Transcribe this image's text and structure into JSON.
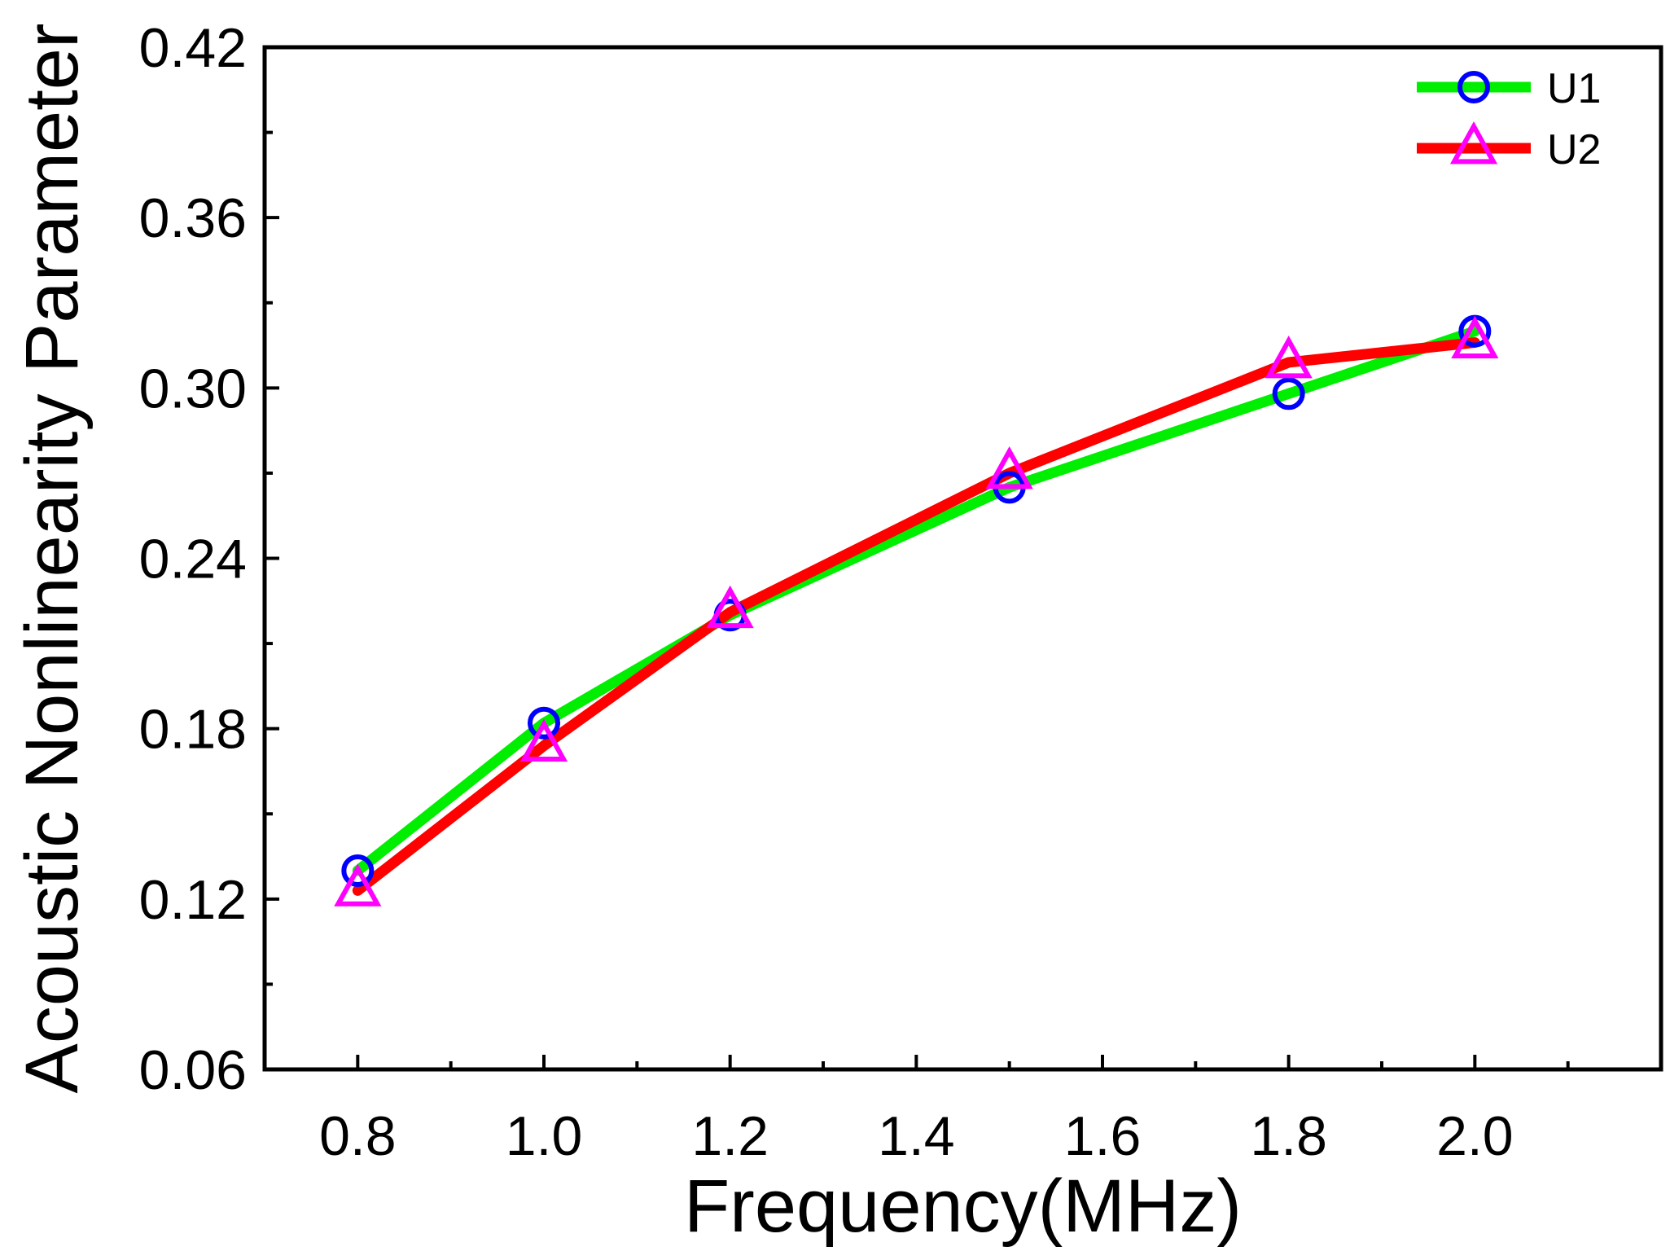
{
  "chart_data": {
    "type": "line",
    "xlabel": "Frequency(MHz)",
    "ylabel": "Acoustic Nonlinearity Parameter",
    "xlim": [
      0.7,
      2.2
    ],
    "ylim": [
      0.06,
      0.42
    ],
    "x_ticks": [
      0.8,
      1.0,
      1.2,
      1.4,
      1.6,
      1.8,
      2.0
    ],
    "x_tick_labels": [
      "0.8",
      "1.0",
      "1.2",
      "1.4",
      "1.6",
      "1.8",
      "2.0"
    ],
    "y_ticks": [
      0.06,
      0.12,
      0.18,
      0.24,
      0.3,
      0.36,
      0.42
    ],
    "y_tick_labels": [
      "0.06",
      "0.12",
      "0.18",
      "0.24",
      "0.30",
      "0.36",
      "0.42"
    ],
    "grid": false,
    "legend_position": "top-right",
    "series": [
      {
        "name": "U1",
        "x": [
          0.8,
          1.0,
          1.2,
          1.5,
          1.8,
          2.0
        ],
        "y": [
          0.13,
          0.182,
          0.22,
          0.265,
          0.298,
          0.32
        ],
        "line_color": "#00ee00",
        "marker": "circle",
        "marker_color": "#0000ff"
      },
      {
        "name": "U2",
        "x": [
          0.8,
          1.0,
          1.2,
          1.5,
          1.8,
          2.0
        ],
        "y": [
          0.123,
          0.174,
          0.221,
          0.27,
          0.309,
          0.316
        ],
        "line_color": "#ff0000",
        "marker": "triangle",
        "marker_color": "#ff00ff"
      }
    ]
  }
}
